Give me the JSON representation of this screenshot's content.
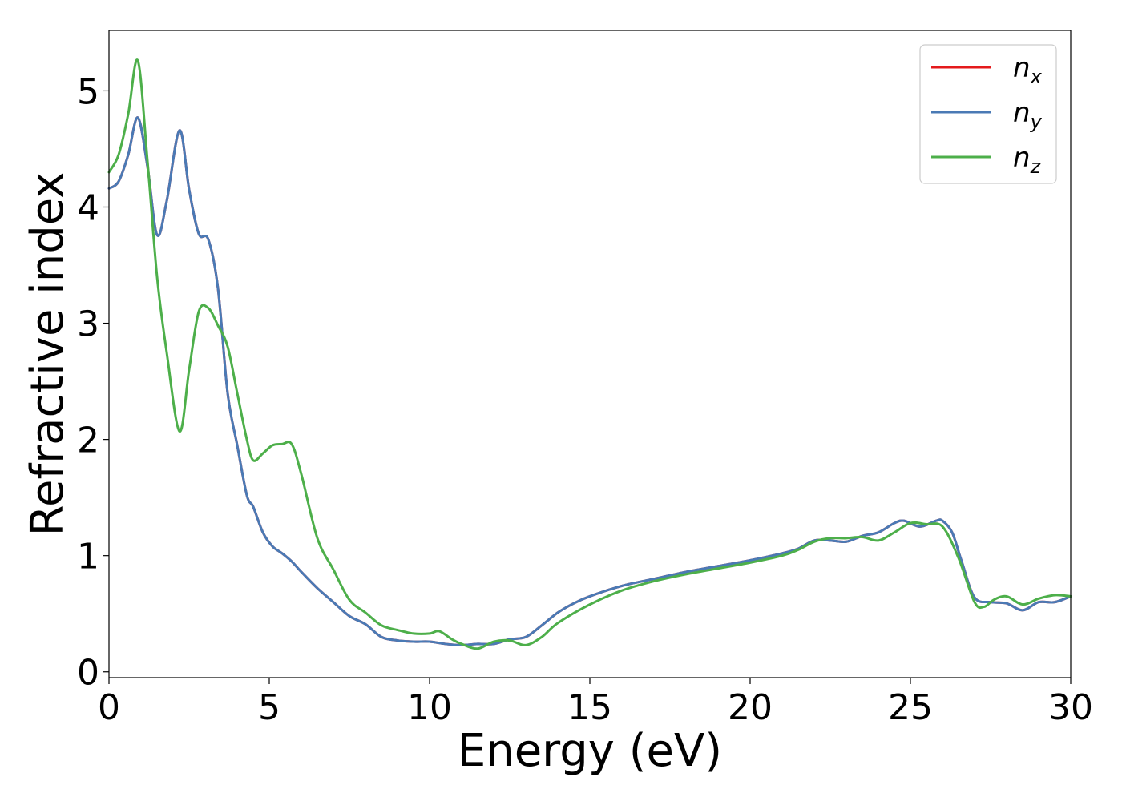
{
  "chart_data": {
    "type": "line",
    "title": "",
    "xlabel": "Energy (eV)",
    "ylabel": "Refractive index",
    "xlim": [
      0,
      30
    ],
    "ylim": [
      -0.05,
      5.52
    ],
    "xticks": [
      0,
      5,
      10,
      15,
      20,
      25,
      30
    ],
    "yticks": [
      0,
      1,
      2,
      3,
      4,
      5
    ],
    "grid": false,
    "legend_position": "top-right",
    "series": [
      {
        "name": "n_x",
        "legend_base": "n",
        "legend_sub": "x",
        "color": "#e41a1c",
        "x": [
          0,
          0.3,
          0.6,
          0.9,
          1.2,
          1.5,
          1.8,
          2.2,
          2.5,
          2.8,
          3.1,
          3.4,
          3.7,
          4.0,
          4.3,
          4.5,
          4.8,
          5.1,
          5.4,
          5.7,
          6.0,
          6.5,
          7.0,
          7.5,
          8.0,
          8.5,
          9.0,
          9.5,
          10.0,
          10.5,
          11.0,
          11.5,
          12.0,
          12.5,
          13.0,
          13.5,
          14.0,
          14.5,
          15.0,
          16.0,
          17.0,
          18.0,
          19.0,
          20.0,
          21.0,
          21.5,
          22.0,
          22.5,
          23.0,
          23.5,
          24.0,
          24.5,
          24.8,
          25.3,
          25.8,
          26.0,
          26.3,
          26.6,
          27.0,
          27.5,
          28.0,
          28.5,
          29.0,
          29.5,
          30.0
        ],
        "y": [
          4.16,
          4.22,
          4.45,
          4.77,
          4.35,
          3.76,
          4.05,
          4.66,
          4.15,
          3.77,
          3.72,
          3.3,
          2.4,
          1.95,
          1.52,
          1.42,
          1.2,
          1.08,
          1.02,
          0.95,
          0.86,
          0.72,
          0.6,
          0.48,
          0.41,
          0.3,
          0.27,
          0.26,
          0.26,
          0.24,
          0.23,
          0.24,
          0.24,
          0.28,
          0.3,
          0.4,
          0.51,
          0.59,
          0.65,
          0.74,
          0.8,
          0.86,
          0.91,
          0.96,
          1.02,
          1.06,
          1.13,
          1.13,
          1.12,
          1.17,
          1.2,
          1.28,
          1.3,
          1.25,
          1.3,
          1.3,
          1.2,
          0.95,
          0.64,
          0.6,
          0.59,
          0.53,
          0.6,
          0.6,
          0.65
        ]
      },
      {
        "name": "n_y",
        "legend_base": "n",
        "legend_sub": "y",
        "color": "#4a7ab5",
        "x": [
          0,
          0.3,
          0.6,
          0.9,
          1.2,
          1.5,
          1.8,
          2.2,
          2.5,
          2.8,
          3.1,
          3.4,
          3.7,
          4.0,
          4.3,
          4.5,
          4.8,
          5.1,
          5.4,
          5.7,
          6.0,
          6.5,
          7.0,
          7.5,
          8.0,
          8.5,
          9.0,
          9.5,
          10.0,
          10.5,
          11.0,
          11.5,
          12.0,
          12.5,
          13.0,
          13.5,
          14.0,
          14.5,
          15.0,
          16.0,
          17.0,
          18.0,
          19.0,
          20.0,
          21.0,
          21.5,
          22.0,
          22.5,
          23.0,
          23.5,
          24.0,
          24.5,
          24.8,
          25.3,
          25.8,
          26.0,
          26.3,
          26.6,
          27.0,
          27.5,
          28.0,
          28.5,
          29.0,
          29.5,
          30.0
        ],
        "y": [
          4.16,
          4.22,
          4.45,
          4.77,
          4.35,
          3.76,
          4.05,
          4.66,
          4.15,
          3.77,
          3.72,
          3.3,
          2.4,
          1.95,
          1.52,
          1.42,
          1.2,
          1.08,
          1.02,
          0.95,
          0.86,
          0.72,
          0.6,
          0.48,
          0.41,
          0.3,
          0.27,
          0.26,
          0.26,
          0.24,
          0.23,
          0.24,
          0.24,
          0.28,
          0.3,
          0.4,
          0.51,
          0.59,
          0.65,
          0.74,
          0.8,
          0.86,
          0.91,
          0.96,
          1.02,
          1.06,
          1.13,
          1.13,
          1.12,
          1.17,
          1.2,
          1.28,
          1.3,
          1.25,
          1.3,
          1.3,
          1.2,
          0.95,
          0.64,
          0.6,
          0.59,
          0.53,
          0.6,
          0.6,
          0.65
        ]
      },
      {
        "name": "n_z",
        "legend_base": "n",
        "legend_sub": "z",
        "color": "#4daf4a",
        "x": [
          0,
          0.3,
          0.6,
          0.9,
          1.2,
          1.5,
          1.8,
          2.2,
          2.5,
          2.8,
          3.1,
          3.4,
          3.7,
          4.0,
          4.3,
          4.5,
          4.8,
          5.1,
          5.4,
          5.7,
          6.0,
          6.5,
          7.0,
          7.5,
          8.0,
          8.5,
          9.0,
          9.5,
          10.0,
          10.3,
          10.7,
          11.0,
          11.5,
          12.0,
          12.5,
          13.0,
          13.5,
          14.0,
          15.0,
          16.0,
          17.0,
          18.0,
          19.0,
          20.0,
          21.0,
          21.5,
          22.0,
          22.5,
          23.0,
          23.5,
          24.0,
          24.5,
          25.0,
          25.5,
          26.0,
          26.5,
          27.0,
          27.3,
          27.6,
          28.0,
          28.5,
          29.0,
          29.5,
          30.0
        ],
        "y": [
          4.3,
          4.45,
          4.8,
          5.26,
          4.4,
          3.4,
          2.75,
          2.07,
          2.6,
          3.1,
          3.13,
          2.98,
          2.8,
          2.4,
          2.0,
          1.82,
          1.88,
          1.95,
          1.96,
          1.96,
          1.7,
          1.15,
          0.88,
          0.62,
          0.51,
          0.4,
          0.36,
          0.33,
          0.33,
          0.35,
          0.28,
          0.24,
          0.2,
          0.26,
          0.27,
          0.23,
          0.3,
          0.42,
          0.58,
          0.7,
          0.78,
          0.84,
          0.89,
          0.94,
          1.0,
          1.05,
          1.12,
          1.15,
          1.15,
          1.16,
          1.13,
          1.2,
          1.28,
          1.27,
          1.25,
          0.98,
          0.6,
          0.56,
          0.62,
          0.65,
          0.58,
          0.63,
          0.66,
          0.65
        ]
      }
    ]
  }
}
